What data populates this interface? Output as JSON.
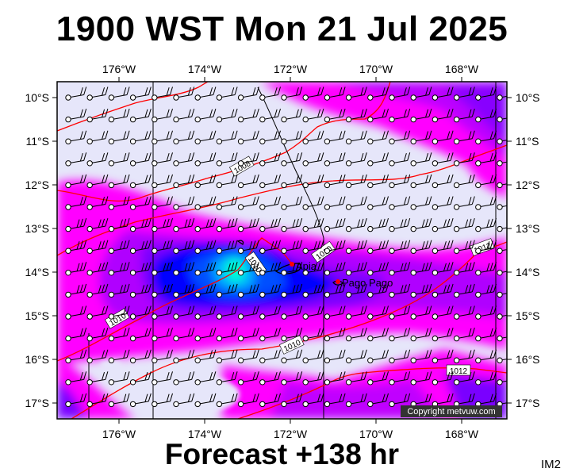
{
  "title": "1900 WST Mon 21 Jul 2025",
  "footer": "Forecast +138 hr",
  "image_id": "IM2",
  "copyright": "Copyright metvuw.com",
  "longitude_labels": [
    "176°W",
    "174°W",
    "172°W",
    "170°W",
    "168°W"
  ],
  "latitude_labels": [
    "10°S",
    "11°S",
    "12°S",
    "13°S",
    "14°S",
    "15°S",
    "16°S",
    "17°S"
  ],
  "places": [
    {
      "name": "Apia"
    },
    {
      "name": "Pago Pago"
    }
  ],
  "isobar_labels": [
    "1008",
    "1010",
    "1010",
    "1010",
    "1012",
    "1010",
    "1012"
  ],
  "colors": {
    "background_fill": "#e6e6fa",
    "magenta": "#ff00ff",
    "purple": "#b000ff",
    "violet": "#7a00ff",
    "blue": "#0000ff",
    "mid_blue": "#0050ff",
    "cyan": "#00b0ff",
    "aqua": "#00ffd0",
    "isobar": "#ff0000"
  },
  "wind_barb": "southeasterly trade winds (barbs pointing NE)"
}
